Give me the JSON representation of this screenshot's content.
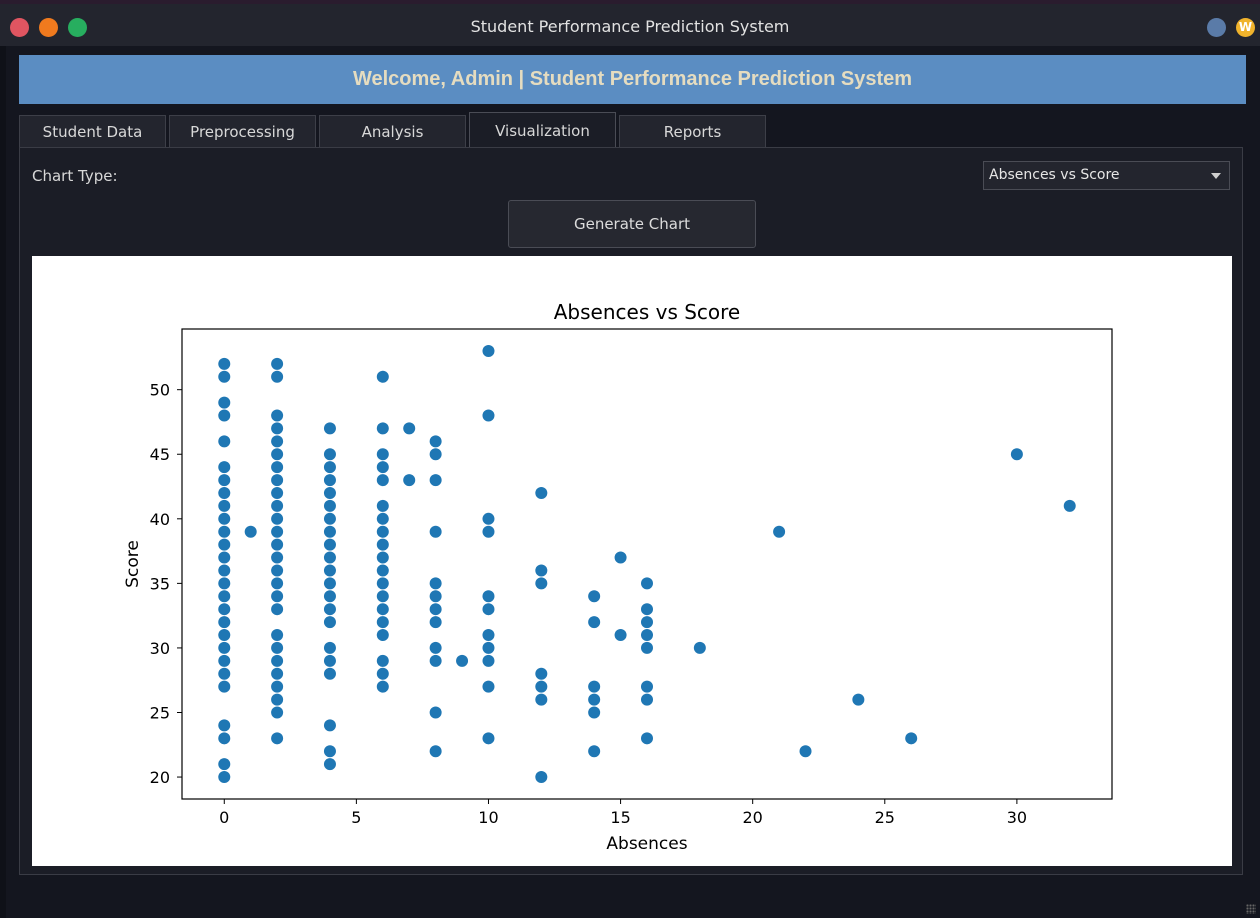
{
  "window": {
    "title": "Student Performance Prediction System"
  },
  "header": {
    "banner": "Welcome, Admin | Student Performance Prediction System"
  },
  "tabs": [
    {
      "label": "Student Data"
    },
    {
      "label": "Preprocessing"
    },
    {
      "label": "Analysis"
    },
    {
      "label": "Visualization",
      "active": true
    },
    {
      "label": "Reports"
    }
  ],
  "controls": {
    "chart_type_label": "Chart Type:",
    "chart_type_value": "Absences vs Score",
    "generate_label": "Generate Chart"
  },
  "icons": [
    "close-icon",
    "minimize-icon",
    "maximize-icon",
    "tray-circle-icon",
    "tray-w-icon",
    "dropdown-caret-icon",
    "resize-grip-icon"
  ],
  "colors": {
    "banner": "#5b8dc2",
    "banner_text": "#e5dcc0",
    "point": "#1f77b4",
    "background": "#14161f"
  },
  "tray": {
    "w_label": "W"
  },
  "chart_data": {
    "type": "scatter",
    "title": "Absences vs Score",
    "xlabel": "Absences",
    "ylabel": "Score",
    "xlim": [
      -1.6,
      33.6
    ],
    "ylim": [
      18.3,
      54.7
    ],
    "xticks": [
      "0",
      "5",
      "10",
      "15",
      "20",
      "25",
      "30"
    ],
    "yticks": [
      "20",
      "25",
      "30",
      "35",
      "40",
      "45",
      "50"
    ],
    "grid": false,
    "points": [
      [
        0,
        52
      ],
      [
        0,
        51
      ],
      [
        0,
        49
      ],
      [
        0,
        48
      ],
      [
        0,
        46
      ],
      [
        0,
        44
      ],
      [
        0,
        43
      ],
      [
        0,
        42
      ],
      [
        0,
        41
      ],
      [
        0,
        40
      ],
      [
        0,
        39
      ],
      [
        0,
        38
      ],
      [
        0,
        37
      ],
      [
        0,
        36
      ],
      [
        0,
        35
      ],
      [
        0,
        34
      ],
      [
        0,
        33
      ],
      [
        0,
        32
      ],
      [
        0,
        31
      ],
      [
        0,
        30
      ],
      [
        0,
        29
      ],
      [
        0,
        28
      ],
      [
        0,
        27
      ],
      [
        0,
        24
      ],
      [
        0,
        23
      ],
      [
        0,
        21
      ],
      [
        0,
        20
      ],
      [
        1,
        39
      ],
      [
        2,
        52
      ],
      [
        2,
        51
      ],
      [
        2,
        48
      ],
      [
        2,
        47
      ],
      [
        2,
        46
      ],
      [
        2,
        45
      ],
      [
        2,
        44
      ],
      [
        2,
        43
      ],
      [
        2,
        42
      ],
      [
        2,
        41
      ],
      [
        2,
        40
      ],
      [
        2,
        39
      ],
      [
        2,
        38
      ],
      [
        2,
        37
      ],
      [
        2,
        36
      ],
      [
        2,
        35
      ],
      [
        2,
        34
      ],
      [
        2,
        33
      ],
      [
        2,
        31
      ],
      [
        2,
        30
      ],
      [
        2,
        29
      ],
      [
        2,
        28
      ],
      [
        2,
        27
      ],
      [
        2,
        26
      ],
      [
        2,
        25
      ],
      [
        2,
        23
      ],
      [
        4,
        47
      ],
      [
        4,
        45
      ],
      [
        4,
        44
      ],
      [
        4,
        43
      ],
      [
        4,
        42
      ],
      [
        4,
        41
      ],
      [
        4,
        40
      ],
      [
        4,
        39
      ],
      [
        4,
        38
      ],
      [
        4,
        37
      ],
      [
        4,
        36
      ],
      [
        4,
        35
      ],
      [
        4,
        34
      ],
      [
        4,
        33
      ],
      [
        4,
        32
      ],
      [
        4,
        30
      ],
      [
        4,
        29
      ],
      [
        4,
        28
      ],
      [
        4,
        24
      ],
      [
        4,
        22
      ],
      [
        4,
        21
      ],
      [
        6,
        51
      ],
      [
        6,
        47
      ],
      [
        6,
        45
      ],
      [
        6,
        44
      ],
      [
        6,
        43
      ],
      [
        6,
        41
      ],
      [
        6,
        40
      ],
      [
        6,
        39
      ],
      [
        6,
        38
      ],
      [
        6,
        37
      ],
      [
        6,
        36
      ],
      [
        6,
        35
      ],
      [
        6,
        34
      ],
      [
        6,
        33
      ],
      [
        6,
        32
      ],
      [
        6,
        31
      ],
      [
        6,
        29
      ],
      [
        6,
        28
      ],
      [
        6,
        27
      ],
      [
        7,
        47
      ],
      [
        7,
        43
      ],
      [
        8,
        46
      ],
      [
        8,
        45
      ],
      [
        8,
        43
      ],
      [
        8,
        39
      ],
      [
        8,
        35
      ],
      [
        8,
        34
      ],
      [
        8,
        33
      ],
      [
        8,
        32
      ],
      [
        8,
        30
      ],
      [
        8,
        29
      ],
      [
        8,
        25
      ],
      [
        8,
        22
      ],
      [
        9,
        29
      ],
      [
        10,
        53
      ],
      [
        10,
        48
      ],
      [
        10,
        40
      ],
      [
        10,
        39
      ],
      [
        10,
        34
      ],
      [
        10,
        33
      ],
      [
        10,
        31
      ],
      [
        10,
        30
      ],
      [
        10,
        29
      ],
      [
        10,
        27
      ],
      [
        10,
        23
      ],
      [
        12,
        42
      ],
      [
        12,
        36
      ],
      [
        12,
        35
      ],
      [
        12,
        28
      ],
      [
        12,
        27
      ],
      [
        12,
        26
      ],
      [
        12,
        20
      ],
      [
        14,
        34
      ],
      [
        14,
        32
      ],
      [
        14,
        27
      ],
      [
        14,
        26
      ],
      [
        14,
        25
      ],
      [
        14,
        22
      ],
      [
        15,
        37
      ],
      [
        15,
        31
      ],
      [
        16,
        35
      ],
      [
        16,
        33
      ],
      [
        16,
        32
      ],
      [
        16,
        31
      ],
      [
        16,
        30
      ],
      [
        16,
        27
      ],
      [
        16,
        26
      ],
      [
        16,
        23
      ],
      [
        18,
        30
      ],
      [
        21,
        39
      ],
      [
        22,
        22
      ],
      [
        24,
        26
      ],
      [
        26,
        23
      ],
      [
        30,
        45
      ],
      [
        32,
        41
      ]
    ]
  }
}
